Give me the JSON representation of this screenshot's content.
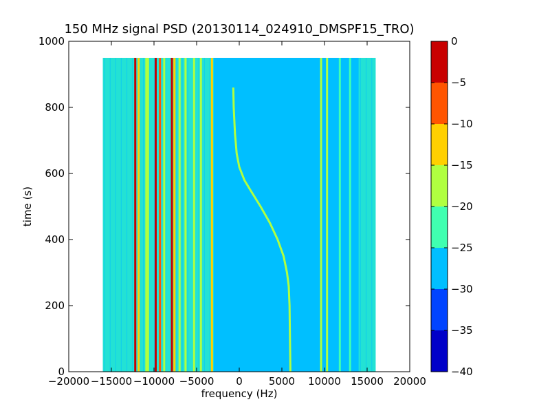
{
  "chart_data": {
    "type": "heatmap",
    "title": "150 MHz signal PSD (20130114_024910_DMSPF15_TRO)",
    "xlabel": "frequency (Hz)",
    "ylabel": "time (s)",
    "xlim": [
      -20000,
      20000
    ],
    "ylim": [
      0,
      1000
    ],
    "x_ticks": [
      -20000,
      -15000,
      -10000,
      -5000,
      0,
      5000,
      10000,
      15000,
      20000
    ],
    "x_tick_labels": [
      "−20000",
      "−15000",
      "−10000",
      "−5000",
      "0",
      "5000",
      "10000",
      "15000",
      "20000"
    ],
    "y_ticks": [
      0,
      200,
      400,
      600,
      800,
      1000
    ],
    "y_tick_labels": [
      "0",
      "200",
      "400",
      "600",
      "800",
      "1000"
    ],
    "data_extent": {
      "freq_min": -16000,
      "freq_max": 16000,
      "time_min": 0,
      "time_max": 950
    },
    "background_level": -27.5,
    "edge_bands": [
      {
        "freq_from": -16000,
        "freq_to": -3000,
        "level": -22.5
      },
      {
        "freq_from": 14000,
        "freq_to": 16000,
        "level": -22.5
      }
    ],
    "vertical_lines": [
      {
        "freq": -12200,
        "level": -2.5
      },
      {
        "freq": -11800,
        "level": -12.5
      },
      {
        "freq": -10900,
        "level": -17.5
      },
      {
        "freq": -10700,
        "level": -17.5
      },
      {
        "freq": -9800,
        "level": -2.5
      },
      {
        "freq": -9300,
        "level": -7.5
      },
      {
        "freq": -8800,
        "level": -17.5
      },
      {
        "freq": -7900,
        "level": -2.5
      },
      {
        "freq": -7600,
        "level": -12.5
      },
      {
        "freq": -7000,
        "level": -17.5
      },
      {
        "freq": -6300,
        "level": -17.5
      },
      {
        "freq": -5300,
        "level": -17.5
      },
      {
        "freq": -4500,
        "level": -17.5
      },
      {
        "freq": -3200,
        "level": -12.5
      },
      {
        "freq": 9600,
        "level": -17.5
      },
      {
        "freq": 10300,
        "level": -17.5
      },
      {
        "freq": 11800,
        "level": -22.5
      },
      {
        "freq": 13000,
        "level": -22.5
      }
    ],
    "doppler_track": {
      "level": -17.5,
      "points": [
        {
          "time": 0,
          "freq": 6000
        },
        {
          "time": 100,
          "freq": 5950
        },
        {
          "time": 200,
          "freq": 5900
        },
        {
          "time": 260,
          "freq": 5800
        },
        {
          "time": 300,
          "freq": 5600
        },
        {
          "time": 350,
          "freq": 5200
        },
        {
          "time": 400,
          "freq": 4500
        },
        {
          "time": 450,
          "freq": 3600
        },
        {
          "time": 500,
          "freq": 2500
        },
        {
          "time": 550,
          "freq": 1300
        },
        {
          "time": 580,
          "freq": 600
        },
        {
          "time": 620,
          "freq": 0
        },
        {
          "time": 660,
          "freq": -300
        },
        {
          "time": 720,
          "freq": -500
        },
        {
          "time": 800,
          "freq": -650
        },
        {
          "time": 860,
          "freq": -700
        }
      ]
    },
    "colorbar": {
      "min": -40,
      "max": 0,
      "tick_labels": [
        "0",
        "−5",
        "−10",
        "−15",
        "−20",
        "−25",
        "−30",
        "−35",
        "−40"
      ],
      "levels": [
        {
          "from": -40,
          "to": -35,
          "color": "#0000c8"
        },
        {
          "from": -35,
          "to": -30,
          "color": "#0044ff"
        },
        {
          "from": -30,
          "to": -25,
          "color": "#00bfff"
        },
        {
          "from": -25,
          "to": -20,
          "color": "#40ffb0"
        },
        {
          "from": -20,
          "to": -15,
          "color": "#b0ff40"
        },
        {
          "from": -15,
          "to": -10,
          "color": "#ffd000"
        },
        {
          "from": -10,
          "to": -5,
          "color": "#ff5500"
        },
        {
          "from": -5,
          "to": 0,
          "color": "#c80000"
        }
      ]
    }
  }
}
